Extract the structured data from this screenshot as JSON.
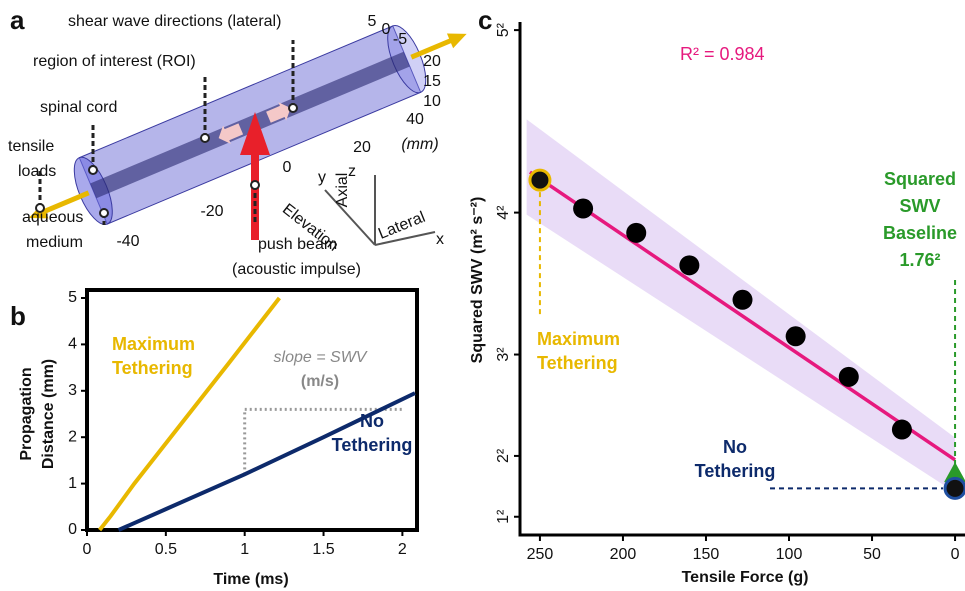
{
  "panel_labels": [
    "a",
    "b",
    "c"
  ],
  "diagram": {
    "labels": [
      "shear wave directions (lateral)",
      "region of interest (ROI)",
      "spinal cord",
      "tensile",
      "loads",
      "aqueous",
      "medium",
      "push beam",
      "(acoustic impulse)",
      "Elevation",
      "Axial",
      "Lateral",
      "x",
      "y",
      "z",
      "(mm)"
    ],
    "tick_labels": [
      "-40",
      "-20",
      "0",
      "20",
      "40",
      "5",
      "0",
      "-5",
      "20",
      "15",
      "10"
    ]
  },
  "chart_data": [
    {
      "type": "line",
      "x_label": "Time (ms)",
      "y_label": [
        "Propagation",
        "Distance (mm)"
      ],
      "xlim": [
        0,
        2.08
      ],
      "ylim": [
        0,
        5
      ],
      "xticks": [
        0,
        0.5,
        1,
        1.5,
        2
      ],
      "yticks": [
        0,
        1,
        2,
        3,
        4,
        5
      ],
      "series": [
        {
          "name": [
            "Maximum",
            "Tethering"
          ],
          "color": "#e8b800",
          "x": [
            0.08,
            0.15,
            0.3,
            0.6,
            0.9,
            1.22
          ],
          "values": [
            0,
            0.3,
            1.0,
            2.3,
            3.6,
            5
          ]
        },
        {
          "name": [
            "No",
            "Tethering"
          ],
          "color": "#0d2a6b",
          "x": [
            0.2,
            0.3,
            0.5,
            1.0,
            1.5,
            2.08
          ],
          "values": [
            0,
            0.15,
            0.45,
            1.2,
            2.0,
            2.95
          ]
        }
      ],
      "slope_guide": {
        "label": "slope = SWV",
        "unit": "(m/s)",
        "x": [
          1,
          1,
          2
        ],
        "y": [
          1.2,
          2.6,
          2.6
        ]
      }
    },
    {
      "type": "scatter",
      "x_label": "Tensile Force (g)",
      "y_label": "Squared SWV (m² s⁻²)",
      "xlim": [
        262,
        -9
      ],
      "ylim": [
        0.1,
        25.4
      ],
      "xticks": [
        250,
        200,
        150,
        100,
        50,
        0
      ],
      "yticks": [
        {
          "value": 1,
          "label": "1²"
        },
        {
          "value": 4,
          "label": "2²"
        },
        {
          "value": 9,
          "label": "3²"
        },
        {
          "value": 16,
          "label": "4²"
        },
        {
          "value": 25,
          "label": "5²"
        }
      ],
      "annotation": "R² = 0.984",
      "x": [
        224,
        192,
        160,
        128,
        96,
        64,
        32
      ],
      "values": [
        16.2,
        15.0,
        13.4,
        11.7,
        9.9,
        7.9,
        5.3
      ],
      "color": "#000000",
      "fit": {
        "color": "#e6197e",
        "x": [
          256,
          0
        ],
        "values": [
          18.0,
          3.8
        ]
      },
      "band": {
        "color": "#e4d3f5",
        "x": [
          258,
          0
        ],
        "upper": [
          20.6,
          4.9
        ],
        "lower": [
          15.9,
          2.2
        ]
      },
      "max_tethering": {
        "label": [
          "Maximum",
          "Tethering"
        ],
        "color": "#e8b800",
        "x": 250,
        "value": 17.6
      },
      "no_tethering": {
        "label": [
          "No",
          "Tethering"
        ],
        "color": "#0d2a6b",
        "x": 0,
        "value": 2.4
      },
      "baseline": {
        "label": [
          "Squared",
          "SWV",
          "Baseline",
          "1.76²"
        ],
        "color": "#2a9a2a",
        "x": 0,
        "value": 3.1
      }
    }
  ]
}
